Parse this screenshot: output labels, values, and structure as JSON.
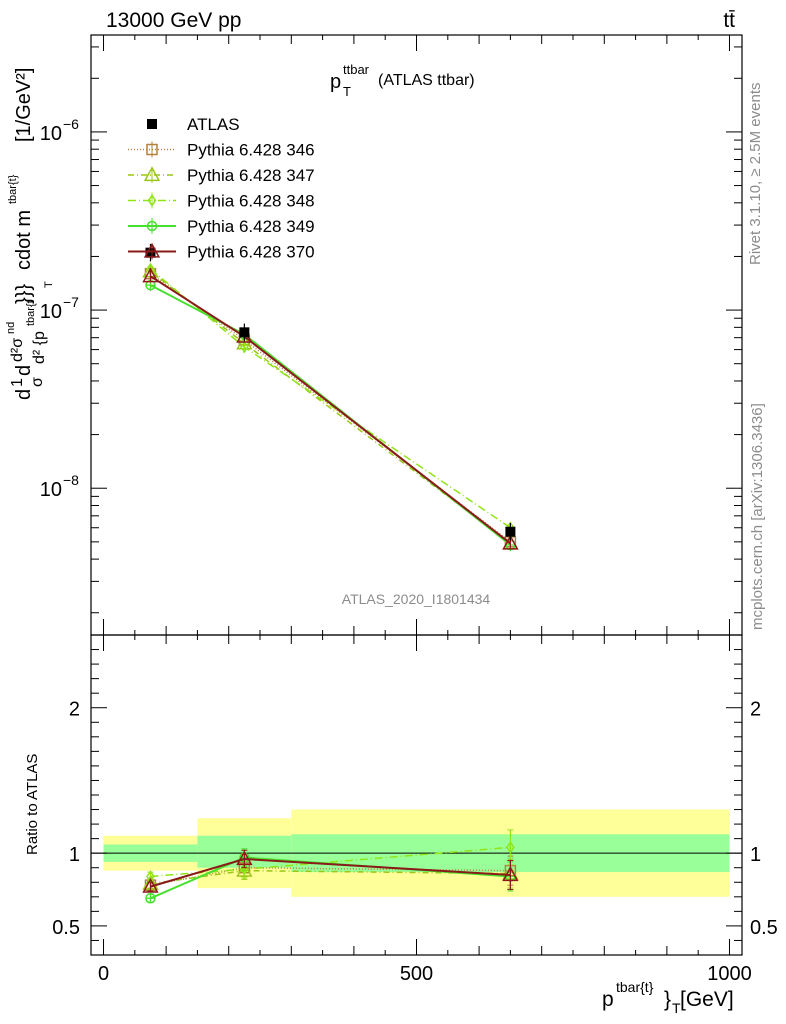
{
  "header": {
    "left": "13000 GeV pp",
    "right": "tt̄"
  },
  "side_labels": {
    "rivet": "Rivet 3.1.10, ≥ 2.5M events",
    "mcplots": "mcplots.cern.ch [arXiv:1306.3436]"
  },
  "watermark": "ATLAS_2020_I1801434",
  "plot_title": {
    "main": "p",
    "sup": "ttbar",
    "sub": "T",
    "rest": " (ATLAS ttbar)"
  },
  "y_axis_label": "d¹⁄σ d d²σⁿᵈ / d² {pᵀ tbar{t} cdot m tbar{t}}} [1/GeV²]",
  "y_axis_label_parts": {
    "unit": "[1/GeV²]",
    "mid": "cdot m",
    "sup_mid": "tbar{t}",
    "tail": "}}}",
    "frac_top": "d²σ",
    "frac_top_sup": "nd",
    "frac_bot": "d² {p",
    "frac_bot_sup": "tbar{t",
    "frac_bot_sub": "T",
    "one_over_sigma": "1",
    "sigma": "σ",
    "d1": "d",
    "d2": "d"
  },
  "ratio_axis_label": "Ratio to ATLAS",
  "x_axis_label": {
    "main": "p",
    "sup": "tbar{t}",
    "sub": "T",
    "unit": " [GeV]",
    "brace": "}"
  },
  "chart_data": {
    "type": "line",
    "x_range": [
      -20,
      1020
    ],
    "y_range_main": [
      1.5e-09,
      3.5e-06
    ],
    "y_scale_main": "log",
    "y_ticks_main": [
      {
        "value": 1e-08,
        "base": "10",
        "exp": "−8"
      },
      {
        "value": 1e-07,
        "base": "10",
        "exp": "−7"
      },
      {
        "value": 1e-06,
        "base": "10",
        "exp": "−6"
      }
    ],
    "y_range_ratio": [
      0.3,
      2.5
    ],
    "y_ticks_ratio": [
      0.5,
      1,
      2
    ],
    "y_tick_labels_ratio": [
      "0.5",
      "1",
      "2"
    ],
    "x_ticks": [
      0,
      500,
      1000
    ],
    "x_tick_labels": [
      "0",
      "500",
      "1000"
    ],
    "legend_position": "top-left",
    "bins": [
      {
        "lo": 0,
        "hi": 150
      },
      {
        "lo": 150,
        "hi": 300
      },
      {
        "lo": 300,
        "hi": 1000
      }
    ],
    "x": [
      75,
      225,
      650
    ],
    "data": {
      "name": "ATLAS",
      "values": [
        2.1e-07,
        7.5e-08,
        5.7e-09
      ],
      "ratio_band_inner": [
        [
          0.94,
          1.06
        ],
        [
          0.9,
          1.12
        ],
        [
          0.87,
          1.13
        ]
      ],
      "ratio_band_outer": [
        [
          0.88,
          1.12
        ],
        [
          0.76,
          1.24
        ],
        [
          0.7,
          1.3
        ]
      ]
    },
    "series": [
      {
        "name": "Pythia 6.428 346",
        "color": "#b5803e",
        "marker": "square-open",
        "dash": "1,2",
        "values": [
          1.6e-07,
          6.8e-08,
          5e-09
        ],
        "ratio": [
          0.78,
          0.9,
          0.88
        ],
        "ratio_err": [
          0.03,
          0.06,
          0.1
        ]
      },
      {
        "name": "Pythia 6.428 347",
        "color": "#9bc617",
        "marker": "triangle-open",
        "dash": "6,3,1,3",
        "values": [
          1.65e-07,
          6.5e-08,
          4.9e-09
        ],
        "ratio": [
          0.79,
          0.88,
          0.86
        ],
        "ratio_err": [
          0.03,
          0.06,
          0.1
        ]
      },
      {
        "name": "Pythia 6.428 348",
        "color": "#8fe516",
        "marker": "diamond-open",
        "dash": "8,3,1,3",
        "values": [
          1.7e-07,
          6.2e-08,
          6e-09
        ],
        "ratio": [
          0.84,
          0.89,
          1.04
        ],
        "ratio_err": [
          0.03,
          0.06,
          0.12
        ]
      },
      {
        "name": "Pythia 6.428 349",
        "color": "#47e02e",
        "marker": "circle-cross-open",
        "dash": "",
        "values": [
          1.38e-07,
          7.3e-08,
          4.8e-09
        ],
        "ratio": [
          0.69,
          0.97,
          0.84
        ],
        "ratio_err": [
          0.03,
          0.06,
          0.1
        ]
      },
      {
        "name": "Pythia 6.428 370",
        "color": "#8b1a1a",
        "marker": "triangle-open",
        "dash": "",
        "values": [
          1.55e-07,
          7.1e-08,
          4.9e-09
        ],
        "ratio": [
          0.77,
          0.96,
          0.85
        ],
        "ratio_err": [
          0.03,
          0.06,
          0.1
        ]
      }
    ]
  }
}
